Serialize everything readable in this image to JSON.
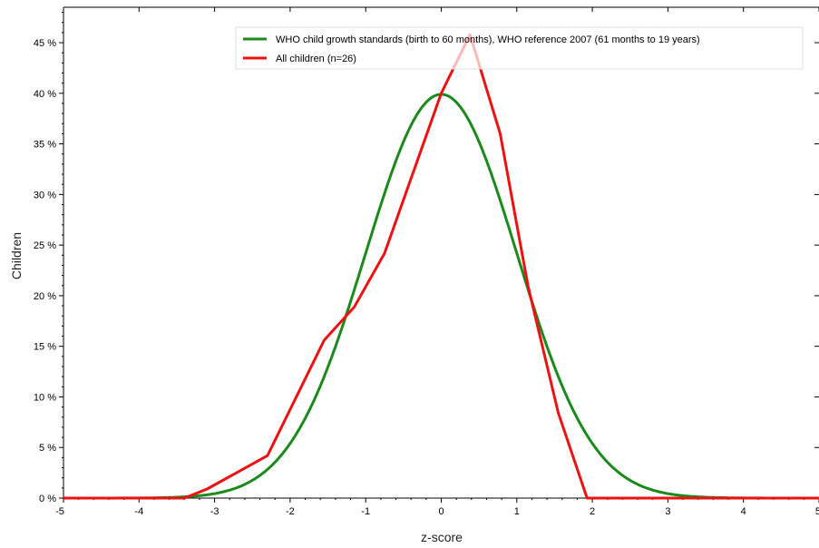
{
  "chart_data": {
    "type": "line",
    "title": "",
    "xlabel": "z-score",
    "ylabel": "Children",
    "xlim": [
      -5,
      5
    ],
    "ylim": [
      0,
      48.5
    ],
    "x_ticks": [
      {
        "value": -5,
        "label": "-5"
      },
      {
        "value": -4,
        "label": "-4"
      },
      {
        "value": -3,
        "label": "-3"
      },
      {
        "value": -2,
        "label": "-2"
      },
      {
        "value": -1,
        "label": "-1"
      },
      {
        "value": 0,
        "label": "0"
      },
      {
        "value": 1,
        "label": "1"
      },
      {
        "value": 2,
        "label": "2"
      },
      {
        "value": 3,
        "label": "3"
      },
      {
        "value": 4,
        "label": "4"
      },
      {
        "value": 5,
        "label": "5"
      }
    ],
    "y_ticks": [
      {
        "value": 0,
        "label": "0 %"
      },
      {
        "value": 5,
        "label": "5 %"
      },
      {
        "value": 10,
        "label": "10 %"
      },
      {
        "value": 15,
        "label": "15 %"
      },
      {
        "value": 20,
        "label": "20 %"
      },
      {
        "value": 25,
        "label": "25 %"
      },
      {
        "value": 30,
        "label": "30 %"
      },
      {
        "value": 35,
        "label": "35 %"
      },
      {
        "value": 40,
        "label": "40 %"
      },
      {
        "value": 45,
        "label": "45 %"
      }
    ],
    "grid": false,
    "legend_position": "top-right",
    "series": [
      {
        "name": "WHO child growth standards (birth to 60 months), WHO reference 2007 (61 months to 19 years)",
        "color": "#1a8a1a",
        "kind": "normal-curve",
        "mean": 0,
        "sd": 1,
        "peak": 39.9
      },
      {
        "name": "All children (n=26)",
        "color": "#ee1111",
        "kind": "polyline",
        "x": [
          -5,
          -3.4,
          -3.1,
          -2.3,
          -1.55,
          -1.15,
          -0.75,
          0.0,
          0.38,
          0.78,
          1.15,
          1.55,
          1.93,
          5
        ],
        "y": [
          0,
          0,
          0.9,
          4.2,
          15.6,
          18.9,
          24.2,
          40.0,
          45.8,
          36.0,
          20.9,
          8.4,
          0,
          0
        ]
      }
    ]
  }
}
